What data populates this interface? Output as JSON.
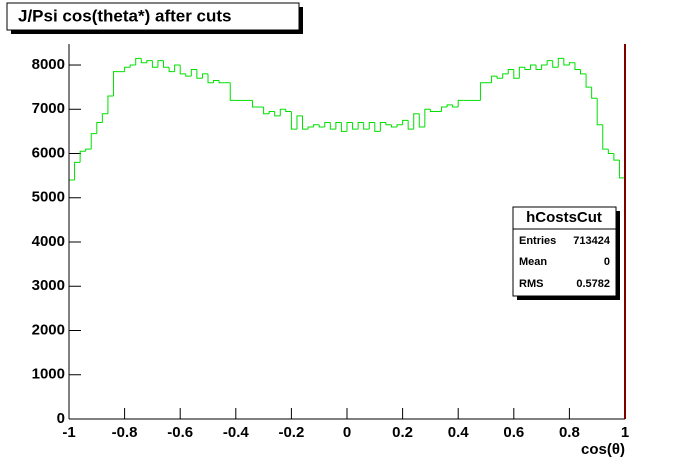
{
  "chart_data": {
    "type": "histogram",
    "title": "J/Psi cos(theta*) after cuts",
    "x_label": "cos(θ)",
    "color": "#00e000",
    "bins": [
      -1,
      -0.98,
      -0.96,
      -0.94,
      -0.92,
      -0.9,
      -0.88,
      -0.86,
      -0.84,
      -0.82,
      -0.8,
      -0.78,
      -0.76,
      -0.74,
      -0.72,
      -0.7,
      -0.68,
      -0.66,
      -0.64,
      -0.62,
      -0.6,
      -0.58,
      -0.56,
      -0.54,
      -0.52,
      -0.5,
      -0.48,
      -0.46,
      -0.44,
      -0.42,
      -0.4,
      -0.38,
      -0.36,
      -0.34,
      -0.32,
      -0.3,
      -0.28,
      -0.26,
      -0.24,
      -0.22,
      -0.2,
      -0.18,
      -0.16,
      -0.14,
      -0.12,
      -0.1,
      -0.08,
      -0.06,
      -0.04,
      -0.02,
      0,
      0.02,
      0.04,
      0.06,
      0.08,
      0.1,
      0.12,
      0.14,
      0.16,
      0.18,
      0.2,
      0.22,
      0.24,
      0.26,
      0.28,
      0.3,
      0.32,
      0.34,
      0.36,
      0.38,
      0.4,
      0.42,
      0.44,
      0.46,
      0.48,
      0.5,
      0.52,
      0.54,
      0.56,
      0.58,
      0.6,
      0.62,
      0.64,
      0.66,
      0.68,
      0.7,
      0.72,
      0.74,
      0.76,
      0.78,
      0.8,
      0.82,
      0.84,
      0.86,
      0.88,
      0.9,
      0.92,
      0.94,
      0.96,
      0.98,
      1
    ],
    "values": [
      5400,
      5800,
      6050,
      6100,
      6450,
      6700,
      6900,
      7300,
      7850,
      7850,
      7950,
      8000,
      8150,
      8050,
      8100,
      7950,
      8100,
      7950,
      7850,
      8000,
      7800,
      7750,
      7900,
      7700,
      7800,
      7600,
      7650,
      7600,
      7600,
      7200,
      7200,
      7200,
      7200,
      7050,
      7050,
      6900,
      6950,
      6850,
      7000,
      6950,
      6550,
      6850,
      6550,
      6600,
      6650,
      6600,
      6700,
      6550,
      6700,
      6500,
      6700,
      6550,
      6700,
      6550,
      6700,
      6500,
      6700,
      6650,
      6600,
      6650,
      6750,
      6550,
      6900,
      6600,
      7000,
      6950,
      6950,
      7050,
      7100,
      7050,
      7200,
      7200,
      7200,
      7200,
      7600,
      7600,
      7750,
      7700,
      7800,
      7900,
      7700,
      7950,
      7900,
      8000,
      7900,
      8000,
      8100,
      7950,
      8150,
      8000,
      8050,
      7900,
      7800,
      7500,
      7250,
      6650,
      6100,
      6000,
      5850,
      5450
    ],
    "xlim": [
      -1,
      1
    ],
    "xticks": [
      -1,
      -0.8,
      -0.6,
      -0.4,
      -0.2,
      0,
      0.2,
      0.4,
      0.6,
      0.8,
      1
    ],
    "ylim": [
      0,
      8475
    ],
    "yticks": [
      0,
      1000,
      2000,
      3000,
      4000,
      5000,
      6000,
      7000,
      8000
    ],
    "stats": {
      "name": "hCostsCut",
      "entries_label": "Entries",
      "entries": 713424,
      "mean_label": "Mean",
      "mean": 0,
      "rms_label": "RMS",
      "rms": 0.5782
    }
  }
}
